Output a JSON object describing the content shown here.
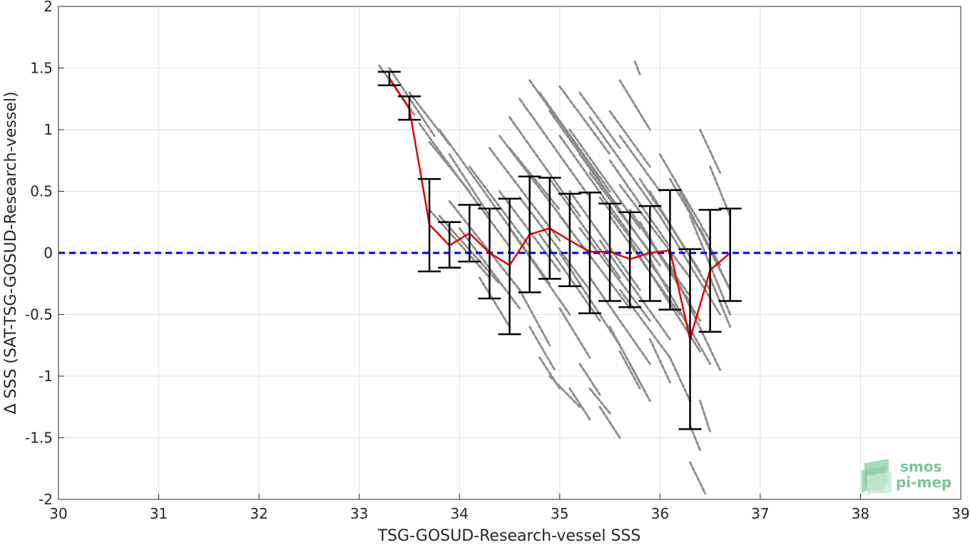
{
  "chart_data": {
    "type": "scatter",
    "xlabel": "TSG-GOSUD-Research-vessel SSS",
    "ylabel": "Δ SSS (SAT-TSG-GOSUD-Research-vessel)",
    "xlim": [
      30,
      39
    ],
    "ylim": [
      -2,
      2
    ],
    "x_ticks": [
      "30",
      "31",
      "32",
      "33",
      "34",
      "35",
      "36",
      "37",
      "38",
      "39"
    ],
    "y_ticks": [
      "2",
      "1.5",
      "1",
      "0.5",
      "0",
      "-0.5",
      "-1",
      "-1.5",
      "-2"
    ],
    "grid": true,
    "reference_line": {
      "y": 0,
      "color": "#0000e6",
      "style": "dashed"
    },
    "mean_line": {
      "color": "#e60000",
      "x": [
        33.3,
        33.5,
        33.7,
        33.9,
        34.1,
        34.3,
        34.5,
        34.7,
        34.9,
        35.1,
        35.3,
        35.5,
        35.7,
        35.9,
        36.1,
        36.3,
        36.5,
        36.7
      ],
      "y": [
        1.42,
        1.17,
        0.23,
        0.06,
        0.16,
        0.0,
        -0.1,
        0.15,
        0.2,
        0.1,
        0.01,
        0.01,
        -0.05,
        0.0,
        0.02,
        -0.7,
        -0.14,
        0.0
      ]
    },
    "error_bars": {
      "color": "#000000",
      "x": [
        33.3,
        33.5,
        33.7,
        33.9,
        34.1,
        34.3,
        34.5,
        34.7,
        34.9,
        35.1,
        35.3,
        35.5,
        35.7,
        35.9,
        36.1,
        36.3,
        36.5,
        36.7
      ],
      "lower": [
        1.36,
        1.08,
        -0.15,
        -0.12,
        -0.07,
        -0.37,
        -0.66,
        -0.32,
        -0.21,
        -0.27,
        -0.49,
        -0.39,
        -0.44,
        -0.39,
        -0.46,
        -1.43,
        -0.64,
        -0.39
      ],
      "upper": [
        1.47,
        1.27,
        0.6,
        0.25,
        0.39,
        0.36,
        0.44,
        0.62,
        0.61,
        0.48,
        0.49,
        0.4,
        0.33,
        0.38,
        0.51,
        0.03,
        0.35,
        0.36
      ]
    },
    "scatter_color": "#8c8c8c",
    "scatter_streaks": [
      [
        33.2,
        1.52,
        33.55,
        1.12
      ],
      [
        33.3,
        1.5,
        33.75,
        0.95
      ],
      [
        33.5,
        1.3,
        33.9,
        0.88
      ],
      [
        33.6,
        1.05,
        34.0,
        0.6
      ],
      [
        33.7,
        0.9,
        34.1,
        0.5
      ],
      [
        33.8,
        1.0,
        34.2,
        0.55
      ],
      [
        33.7,
        0.35,
        34.3,
        -0.2
      ],
      [
        33.8,
        0.3,
        34.4,
        -0.25
      ],
      [
        33.9,
        0.42,
        34.6,
        -0.3
      ],
      [
        34.0,
        0.2,
        34.6,
        -0.45
      ],
      [
        34.1,
        0.7,
        34.7,
        0.05
      ],
      [
        34.2,
        0.55,
        34.9,
        -0.25
      ],
      [
        34.3,
        0.85,
        35.0,
        0.1
      ],
      [
        34.4,
        0.95,
        35.1,
        0.2
      ],
      [
        34.5,
        1.1,
        35.2,
        0.3
      ],
      [
        34.6,
        0.45,
        35.3,
        -0.3
      ],
      [
        34.6,
        1.25,
        35.3,
        0.45
      ],
      [
        34.7,
        1.4,
        35.4,
        0.6
      ],
      [
        34.8,
        1.3,
        35.5,
        0.5
      ],
      [
        34.9,
        1.15,
        35.6,
        0.35
      ],
      [
        34.9,
        0.6,
        35.6,
        -0.2
      ],
      [
        35.0,
        0.95,
        35.7,
        0.15
      ],
      [
        35.0,
        0.3,
        35.7,
        -0.45
      ],
      [
        35.1,
        1.0,
        35.8,
        0.2
      ],
      [
        35.1,
        0.5,
        35.8,
        -0.3
      ],
      [
        35.2,
        0.8,
        35.9,
        0.0
      ],
      [
        35.2,
        0.2,
        35.9,
        -0.55
      ],
      [
        35.3,
        0.65,
        36.0,
        -0.1
      ],
      [
        35.3,
        1.1,
        36.0,
        0.3
      ],
      [
        35.4,
        0.45,
        36.1,
        -0.3
      ],
      [
        35.4,
        0.1,
        36.1,
        -0.7
      ],
      [
        35.5,
        0.75,
        36.1,
        0.05
      ],
      [
        35.5,
        0.3,
        36.2,
        -0.5
      ],
      [
        35.6,
        0.55,
        36.3,
        -0.2
      ],
      [
        35.6,
        1.4,
        35.9,
        1.0
      ],
      [
        35.7,
        0.35,
        36.3,
        -0.4
      ],
      [
        35.7,
        0.1,
        36.4,
        -0.8
      ],
      [
        35.8,
        0.6,
        36.4,
        -0.15
      ],
      [
        35.8,
        0.25,
        36.4,
        -0.55
      ],
      [
        35.9,
        0.5,
        36.5,
        -0.3
      ],
      [
        35.9,
        -0.05,
        36.5,
        -0.9
      ],
      [
        36.0,
        0.8,
        36.5,
        0.1
      ],
      [
        36.0,
        0.3,
        36.6,
        -0.5
      ],
      [
        36.1,
        0.6,
        36.6,
        -0.1
      ],
      [
        36.1,
        -0.1,
        36.6,
        -0.95
      ],
      [
        36.2,
        0.5,
        36.7,
        -0.3
      ],
      [
        36.3,
        0.3,
        36.7,
        -0.5
      ],
      [
        36.4,
        1.0,
        36.6,
        0.65
      ],
      [
        36.4,
        0.2,
        36.7,
        -0.3
      ],
      [
        36.5,
        0.7,
        36.7,
        0.3
      ],
      [
        36.5,
        -0.2,
        36.7,
        -0.6
      ],
      [
        34.2,
        -0.2,
        34.5,
        -0.6
      ],
      [
        34.6,
        -0.3,
        34.9,
        -0.75
      ],
      [
        34.7,
        -0.6,
        34.95,
        -0.95
      ],
      [
        34.8,
        -0.85,
        35.0,
        -1.1
      ],
      [
        34.9,
        -1.0,
        35.2,
        -1.25
      ],
      [
        35.0,
        -0.45,
        35.3,
        -0.85
      ],
      [
        35.1,
        -1.1,
        35.3,
        -1.35
      ],
      [
        35.2,
        -0.9,
        35.4,
        -1.15
      ],
      [
        35.3,
        -1.1,
        35.5,
        -1.3
      ],
      [
        35.4,
        -1.25,
        35.6,
        -1.5
      ],
      [
        35.5,
        -0.6,
        35.8,
        -1.05
      ],
      [
        35.6,
        -0.8,
        35.8,
        -1.1
      ],
      [
        35.7,
        -0.9,
        35.9,
        -1.2
      ],
      [
        35.9,
        -0.7,
        36.1,
        -1.05
      ],
      [
        36.1,
        -0.85,
        36.3,
        -1.2
      ],
      [
        36.3,
        -1.4,
        36.4,
        -1.6
      ],
      [
        36.3,
        -1.7,
        36.45,
        -1.95
      ],
      [
        36.4,
        -1.2,
        36.5,
        -1.45
      ],
      [
        35.75,
        1.55,
        35.8,
        1.45
      ],
      [
        34.5,
        0.85,
        35.0,
        0.35
      ],
      [
        35.0,
        1.35,
        35.5,
        0.8
      ],
      [
        35.2,
        1.3,
        35.6,
        0.85
      ],
      [
        35.5,
        1.15,
        35.9,
        0.7
      ],
      [
        35.6,
        0.95,
        36.0,
        0.5
      ],
      [
        33.9,
        0.8,
        34.3,
        0.3
      ],
      [
        34.0,
        0.6,
        34.5,
        0.05
      ],
      [
        34.4,
        0.5,
        35.0,
        -0.15
      ],
      [
        34.5,
        0.2,
        35.1,
        -0.5
      ],
      [
        34.8,
        0.15,
        35.4,
        -0.55
      ],
      [
        35.0,
        0.0,
        35.6,
        -0.75
      ],
      [
        35.3,
        -0.2,
        35.9,
        -0.9
      ],
      [
        35.6,
        -0.3,
        36.1,
        -0.85
      ],
      [
        35.9,
        0.1,
        36.3,
        -0.35
      ]
    ]
  },
  "logo": {
    "line1": "smos",
    "line2": "pi-mep"
  }
}
